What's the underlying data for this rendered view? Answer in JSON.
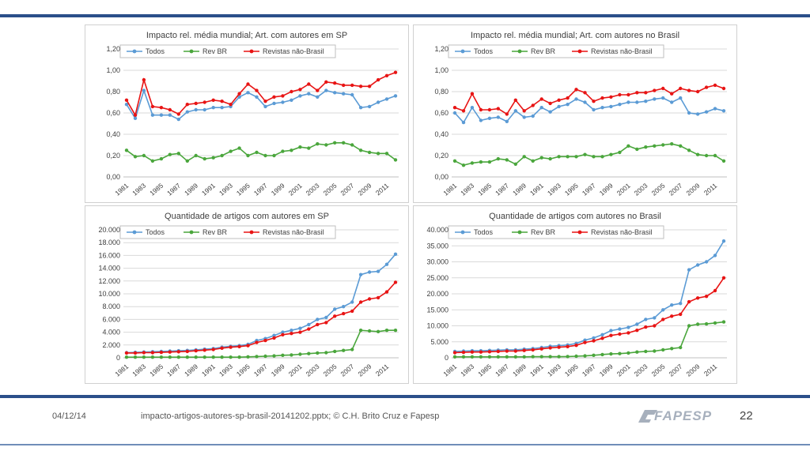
{
  "colors": {
    "todos": "#5b9bd5",
    "rev_br": "#4aa63c",
    "revistas": "#e81414",
    "grid": "#d9d9d9",
    "axis_text": "#404040",
    "rule": "#2b4f8a"
  },
  "footer": {
    "date": "04/12/14",
    "file": "impacto-artigos-autores-sp-brasil-20141202.pptx; © C.H. Brito Cruz e Fapesp",
    "page": "22",
    "logo_text": "FAPESP"
  },
  "chart_data": [
    {
      "id": "impact-sp",
      "type": "line",
      "title": "Impacto rel. média mundial; Art. com autores em SP",
      "years": [
        1981,
        1982,
        1983,
        1984,
        1985,
        1986,
        1987,
        1988,
        1989,
        1990,
        1991,
        1992,
        1993,
        1994,
        1995,
        1996,
        1997,
        1998,
        1999,
        2000,
        2001,
        2002,
        2003,
        2004,
        2005,
        2006,
        2007,
        2008,
        2009,
        2010,
        2011,
        2012
      ],
      "xtick_labels": [
        "1981",
        "1983",
        "1985",
        "1987",
        "1989",
        "1991",
        "1993",
        "1995",
        "1997",
        "1999",
        "2001",
        "2003",
        "2005",
        "2007",
        "2009",
        "2011"
      ],
      "ylim": [
        0,
        1.2
      ],
      "yticks": [
        0,
        0.2,
        0.4,
        0.6,
        0.8,
        1.0,
        1.2
      ],
      "ytick_labels": [
        "0,00",
        "0,20",
        "0,40",
        "0,60",
        "0,80",
        "1,00",
        "1,20"
      ],
      "series": [
        {
          "name": "Todos",
          "key": "todos",
          "values": [
            0.68,
            0.55,
            0.81,
            0.58,
            0.58,
            0.58,
            0.54,
            0.61,
            0.63,
            0.63,
            0.65,
            0.65,
            0.66,
            0.75,
            0.79,
            0.75,
            0.66,
            0.69,
            0.7,
            0.72,
            0.76,
            0.78,
            0.75,
            0.81,
            0.79,
            0.78,
            0.77,
            0.65,
            0.66,
            0.7,
            0.73,
            0.76
          ]
        },
        {
          "name": "Rev BR",
          "key": "rev_br",
          "values": [
            0.25,
            0.19,
            0.2,
            0.15,
            0.17,
            0.21,
            0.22,
            0.15,
            0.2,
            0.17,
            0.18,
            0.2,
            0.24,
            0.27,
            0.2,
            0.23,
            0.2,
            0.2,
            0.24,
            0.25,
            0.28,
            0.27,
            0.31,
            0.3,
            0.32,
            0.32,
            0.3,
            0.25,
            0.23,
            0.22,
            0.22,
            0.16
          ]
        },
        {
          "name": "Revistas  não-Brasil",
          "key": "revistas",
          "values": [
            0.72,
            0.58,
            0.91,
            0.66,
            0.65,
            0.63,
            0.59,
            0.68,
            0.69,
            0.7,
            0.72,
            0.71,
            0.68,
            0.78,
            0.87,
            0.81,
            0.71,
            0.75,
            0.76,
            0.8,
            0.82,
            0.87,
            0.81,
            0.89,
            0.88,
            0.86,
            0.86,
            0.85,
            0.85,
            0.91,
            0.95,
            0.98
          ]
        }
      ]
    },
    {
      "id": "impact-br",
      "type": "line",
      "title": "Impacto rel. média mundial; Art. com autores no Brasil",
      "years": [
        1981,
        1982,
        1983,
        1984,
        1985,
        1986,
        1987,
        1988,
        1989,
        1990,
        1991,
        1992,
        1993,
        1994,
        1995,
        1996,
        1997,
        1998,
        1999,
        2000,
        2001,
        2002,
        2003,
        2004,
        2005,
        2006,
        2007,
        2008,
        2009,
        2010,
        2011,
        2012
      ],
      "xtick_labels": [
        "1981",
        "1983",
        "1985",
        "1987",
        "1989",
        "1991",
        "1993",
        "1995",
        "1997",
        "1999",
        "2001",
        "2003",
        "2005",
        "2007",
        "2009",
        "2011"
      ],
      "ylim": [
        0,
        1.2
      ],
      "yticks": [
        0,
        0.2,
        0.4,
        0.6,
        0.8,
        1.0,
        1.2
      ],
      "ytick_labels": [
        "0,00",
        "0,20",
        "0,40",
        "0,60",
        "0,80",
        "1,00",
        "1,20"
      ],
      "series": [
        {
          "name": "Todos",
          "key": "todos",
          "values": [
            0.6,
            0.51,
            0.65,
            0.53,
            0.55,
            0.56,
            0.52,
            0.62,
            0.56,
            0.57,
            0.65,
            0.61,
            0.66,
            0.68,
            0.73,
            0.7,
            0.63,
            0.65,
            0.66,
            0.68,
            0.7,
            0.7,
            0.71,
            0.73,
            0.74,
            0.7,
            0.74,
            0.6,
            0.59,
            0.61,
            0.64,
            0.62
          ]
        },
        {
          "name": "Rev BR",
          "key": "rev_br",
          "values": [
            0.15,
            0.11,
            0.13,
            0.14,
            0.14,
            0.17,
            0.16,
            0.12,
            0.19,
            0.15,
            0.18,
            0.17,
            0.19,
            0.19,
            0.19,
            0.21,
            0.19,
            0.19,
            0.21,
            0.23,
            0.29,
            0.26,
            0.28,
            0.29,
            0.3,
            0.31,
            0.29,
            0.25,
            0.21,
            0.2,
            0.2,
            0.15
          ]
        },
        {
          "name": "Revistas  não-Brasil",
          "key": "revistas",
          "values": [
            0.65,
            0.62,
            0.78,
            0.63,
            0.63,
            0.64,
            0.59,
            0.72,
            0.62,
            0.67,
            0.73,
            0.69,
            0.72,
            0.74,
            0.82,
            0.79,
            0.71,
            0.74,
            0.75,
            0.77,
            0.77,
            0.79,
            0.79,
            0.81,
            0.83,
            0.78,
            0.83,
            0.81,
            0.8,
            0.84,
            0.86,
            0.83
          ]
        }
      ]
    },
    {
      "id": "count-sp",
      "type": "line",
      "title": "Quantidade de artigos com autores em SP",
      "years": [
        1981,
        1982,
        1983,
        1984,
        1985,
        1986,
        1987,
        1988,
        1989,
        1990,
        1991,
        1992,
        1993,
        1994,
        1995,
        1996,
        1997,
        1998,
        1999,
        2000,
        2001,
        2002,
        2003,
        2004,
        2005,
        2006,
        2007,
        2008,
        2009,
        2010,
        2011,
        2012
      ],
      "xtick_labels": [
        "1981",
        "1983",
        "1985",
        "1987",
        "1989",
        "1991",
        "1993",
        "1995",
        "1997",
        "1999",
        "2001",
        "2003",
        "2005",
        "2007",
        "2009",
        "2011"
      ],
      "ylim": [
        0,
        20000
      ],
      "yticks": [
        0,
        2000,
        4000,
        6000,
        8000,
        10000,
        12000,
        14000,
        16000,
        18000,
        20000
      ],
      "ytick_labels": [
        "0",
        "2.000",
        "4.000",
        "6.000",
        "8.000",
        "10.000",
        "12.000",
        "14.000",
        "16.000",
        "18.000",
        "20.000"
      ],
      "series": [
        {
          "name": "Todos",
          "key": "todos",
          "values": [
            800,
            850,
            900,
            950,
            1000,
            1050,
            1100,
            1150,
            1250,
            1350,
            1450,
            1650,
            1800,
            1900,
            2100,
            2700,
            3000,
            3500,
            4000,
            4300,
            4600,
            5200,
            6000,
            6300,
            7600,
            8000,
            8700,
            13000,
            13400,
            13500,
            14600,
            16200
          ]
        },
        {
          "name": "Rev BR",
          "key": "rev_br",
          "values": [
            100,
            100,
            100,
            100,
            100,
            100,
            100,
            100,
            100,
            100,
            100,
            100,
            100,
            100,
            150,
            200,
            250,
            300,
            400,
            450,
            550,
            650,
            750,
            800,
            1000,
            1150,
            1300,
            4300,
            4200,
            4100,
            4300,
            4300
          ]
        },
        {
          "name": "Revistas  não-Brasil",
          "key": "revistas",
          "values": [
            750,
            750,
            800,
            800,
            850,
            900,
            950,
            1000,
            1100,
            1200,
            1300,
            1500,
            1650,
            1750,
            1900,
            2400,
            2700,
            3100,
            3600,
            3800,
            4000,
            4500,
            5200,
            5500,
            6500,
            6900,
            7300,
            8700,
            9200,
            9400,
            10300,
            11800
          ]
        }
      ]
    },
    {
      "id": "count-br",
      "type": "line",
      "title": "Quantidade de artigos com autores no Brasil",
      "years": [
        1981,
        1982,
        1983,
        1984,
        1985,
        1986,
        1987,
        1988,
        1989,
        1990,
        1991,
        1992,
        1993,
        1994,
        1995,
        1996,
        1997,
        1998,
        1999,
        2000,
        2001,
        2002,
        2003,
        2004,
        2005,
        2006,
        2007,
        2008,
        2009,
        2010,
        2011,
        2012
      ],
      "xtick_labels": [
        "1981",
        "1983",
        "1985",
        "1987",
        "1989",
        "1991",
        "1993",
        "1995",
        "1997",
        "1999",
        "2001",
        "2003",
        "2005",
        "2007",
        "2009",
        "2011"
      ],
      "ylim": [
        0,
        40000
      ],
      "yticks": [
        0,
        5000,
        10000,
        15000,
        20000,
        25000,
        30000,
        35000,
        40000
      ],
      "ytick_labels": [
        "0",
        "5.000",
        "10.000",
        "15.000",
        "20.000",
        "25.000",
        "30.000",
        "35.000",
        "40.000"
      ],
      "series": [
        {
          "name": "Todos",
          "key": "todos",
          "values": [
            2000,
            2100,
            2200,
            2200,
            2300,
            2400,
            2500,
            2500,
            2700,
            2900,
            3200,
            3600,
            3800,
            4000,
            4500,
            5500,
            6200,
            7200,
            8500,
            9000,
            9500,
            10500,
            12000,
            12500,
            15000,
            16500,
            17000,
            27500,
            29000,
            30000,
            32000,
            36500
          ]
        },
        {
          "name": "Rev BR",
          "key": "rev_br",
          "values": [
            300,
            300,
            300,
            300,
            300,
            300,
            300,
            300,
            300,
            350,
            350,
            350,
            350,
            400,
            500,
            600,
            800,
            1000,
            1200,
            1300,
            1500,
            1800,
            2000,
            2100,
            2500,
            2900,
            3200,
            10000,
            10500,
            10600,
            10900,
            11200
          ]
        },
        {
          "name": "Revistas  não-Brasil",
          "key": "revistas",
          "values": [
            1600,
            1700,
            1800,
            1800,
            1900,
            2000,
            2100,
            2100,
            2300,
            2500,
            2800,
            3100,
            3300,
            3500,
            3900,
            4800,
            5300,
            6100,
            7000,
            7400,
            7800,
            8600,
            9600,
            10000,
            12000,
            13000,
            13600,
            17500,
            18700,
            19200,
            21000,
            25000
          ]
        }
      ]
    }
  ]
}
